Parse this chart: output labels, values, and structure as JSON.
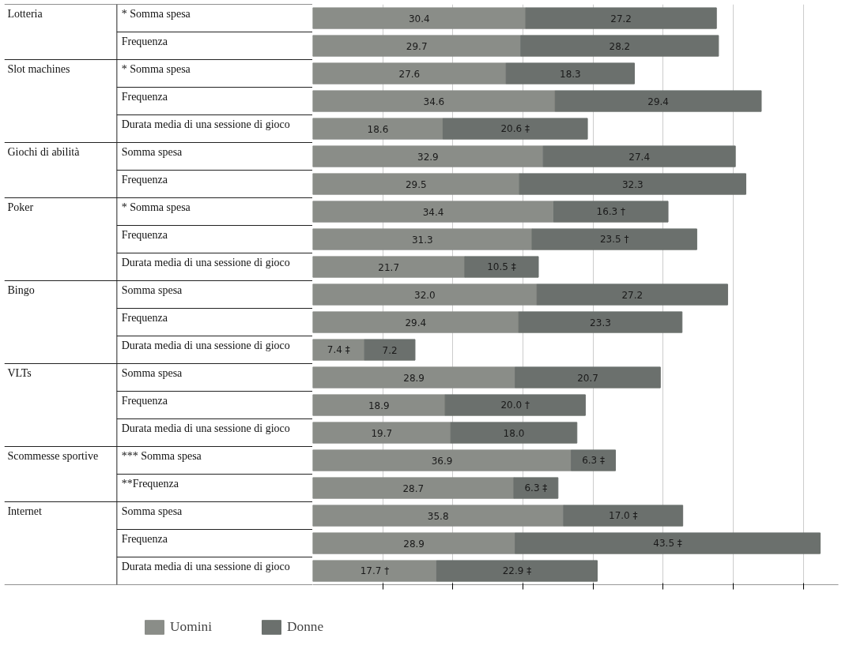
{
  "chart_data": {
    "type": "bar",
    "orientation": "horizontal",
    "stacked": true,
    "categories": [
      [
        "Lotteria",
        "* Somma spesa"
      ],
      [
        null,
        "Frequenza"
      ],
      [
        "Slot machines",
        "* Somma spesa"
      ],
      [
        null,
        "Frequenza"
      ],
      [
        null,
        "Durata media di una sessione di gioco"
      ],
      [
        "Giochi di abilità",
        "Somma spesa"
      ],
      [
        null,
        "Frequenza"
      ],
      [
        "Poker",
        "* Somma spesa"
      ],
      [
        null,
        "Frequenza"
      ],
      [
        null,
        "Durata media di una sessione di gioco"
      ],
      [
        "Bingo",
        "Somma spesa"
      ],
      [
        null,
        "Frequenza"
      ],
      [
        null,
        "Durata media di una sessione di gioco"
      ],
      [
        "VLTs",
        "Somma spesa"
      ],
      [
        null,
        "Frequenza"
      ],
      [
        null,
        "Durata media di una sessione di gioco"
      ],
      [
        "Scommesse sportive",
        "*** Somma spesa"
      ],
      [
        null,
        "**Frequenza"
      ],
      [
        "Internet",
        "Somma spesa"
      ],
      [
        null,
        "Frequenza"
      ],
      [
        null,
        "Durata media di una sessione di gioco"
      ]
    ],
    "series": [
      {
        "name": "Uomini",
        "color": "#8a8d88",
        "values": [
          30.4,
          29.7,
          27.6,
          34.6,
          18.6,
          32.9,
          29.5,
          34.4,
          31.3,
          21.7,
          32.0,
          29.4,
          7.4,
          28.9,
          18.9,
          19.7,
          36.9,
          28.7,
          35.8,
          28.9,
          17.7
        ],
        "value_labels": [
          "30.4",
          "29.7",
          "27.6",
          "34.6",
          "18.6",
          "32.9",
          "29.5",
          "34.4",
          "31.3",
          "21.7",
          "32.0",
          "29.4",
          "7.4 ‡",
          "28.9",
          "18.9",
          "19.7",
          "36.9",
          "28.7",
          "35.8",
          "28.9",
          "17.7 †"
        ]
      },
      {
        "name": "Donne",
        "color": "#6b706d",
        "values": [
          27.2,
          28.2,
          18.3,
          29.4,
          20.6,
          27.4,
          32.3,
          16.3,
          23.5,
          10.5,
          27.2,
          23.3,
          7.2,
          20.7,
          20.0,
          18.0,
          6.3,
          6.3,
          17.0,
          43.5,
          22.9
        ],
        "value_labels": [
          "27.2",
          "28.2",
          "18.3",
          "29.4",
          "20.6 ‡",
          "27.4",
          "32.3",
          "16.3 †",
          "23.5 †",
          "10.5 ‡",
          "27.2",
          "23.3",
          "7.2",
          "20.7",
          "20.0 †",
          "18.0",
          "6.3 ‡",
          "6.3 ‡",
          "17.0 ‡",
          "43.5 ‡",
          "22.9 ‡"
        ]
      }
    ],
    "xlim": [
      0,
      75
    ],
    "xticks": [
      {
        "value": 10,
        "label": null
      },
      {
        "value": 20,
        "label": null
      },
      {
        "value": 30,
        "label": null
      },
      {
        "value": 40,
        "label": null
      },
      {
        "value": 50,
        "label": null
      },
      {
        "value": 60,
        "label": null
      },
      {
        "value": 70,
        "label": null
      }
    ],
    "grid": "x",
    "legend": "bottom",
    "tick_labels": "y"
  }
}
